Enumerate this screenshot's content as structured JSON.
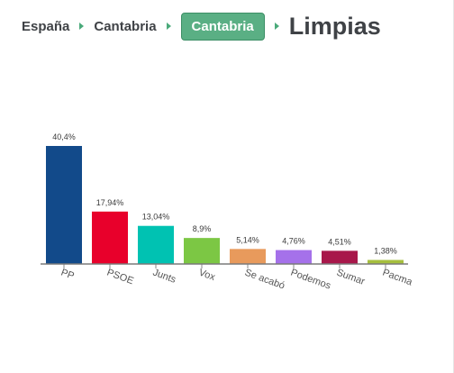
{
  "breadcrumb": {
    "items": [
      "España",
      "Cantabria"
    ],
    "active": "Cantabria",
    "title": "Limpias"
  },
  "colors": {
    "accent": "#5aaf84",
    "separator": "#4aaa7a"
  },
  "chart_data": {
    "type": "bar",
    "categories": [
      "PP",
      "PSOE",
      "Junts",
      "Vox",
      "Se acabó",
      "Podemos",
      "Sumar",
      "Pacma"
    ],
    "values": [
      40.4,
      17.94,
      13.04,
      8.9,
      5.14,
      4.76,
      4.51,
      1.38
    ],
    "value_labels": [
      "40,4%",
      "17,94%",
      "13,04%",
      "8,9%",
      "5,14%",
      "4,76%",
      "4,51%",
      "1,38%"
    ],
    "colors": [
      "#124a8a",
      "#e8002b",
      "#00c2b2",
      "#7cc744",
      "#e89a5c",
      "#a571ea",
      "#a8174a",
      "#a6bf3e"
    ],
    "ylim": [
      0,
      40.4
    ],
    "grid": false,
    "legend": "none"
  }
}
